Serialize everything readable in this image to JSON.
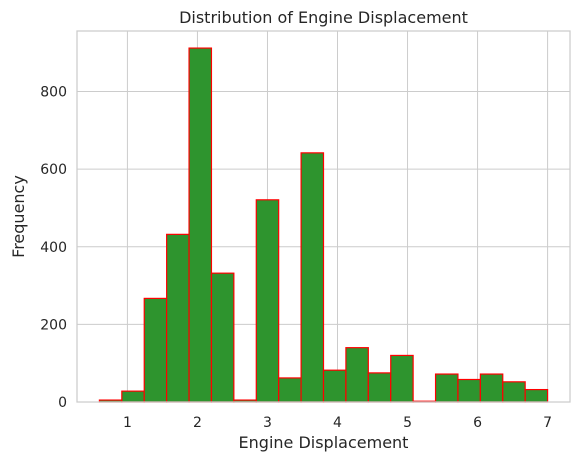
{
  "chart_data": {
    "type": "bar",
    "title": "Distribution of Engine Displacement",
    "xlabel": "Engine Displacement",
    "ylabel": "Frequency",
    "xlim": [
      0.28,
      7.32
    ],
    "ylim": [
      0,
      956
    ],
    "xticks": [
      1,
      2,
      3,
      4,
      5,
      6,
      7
    ],
    "yticks": [
      0,
      200,
      400,
      600,
      800
    ],
    "bin_edges": [
      0.6,
      0.92,
      1.24,
      1.56,
      1.88,
      2.2,
      2.52,
      2.84,
      3.16,
      3.48,
      3.8,
      4.12,
      4.44,
      4.76,
      5.08,
      5.4,
      5.72,
      6.04,
      6.36,
      6.68,
      7.0
    ],
    "values": [
      5,
      28,
      267,
      432,
      912,
      332,
      5,
      521,
      62,
      642,
      82,
      140,
      75,
      120,
      2,
      72,
      58,
      72,
      52,
      32
    ],
    "bar_fill": "#2e942e",
    "bar_edge": "#ff0000",
    "grid": true,
    "legend": "none"
  }
}
